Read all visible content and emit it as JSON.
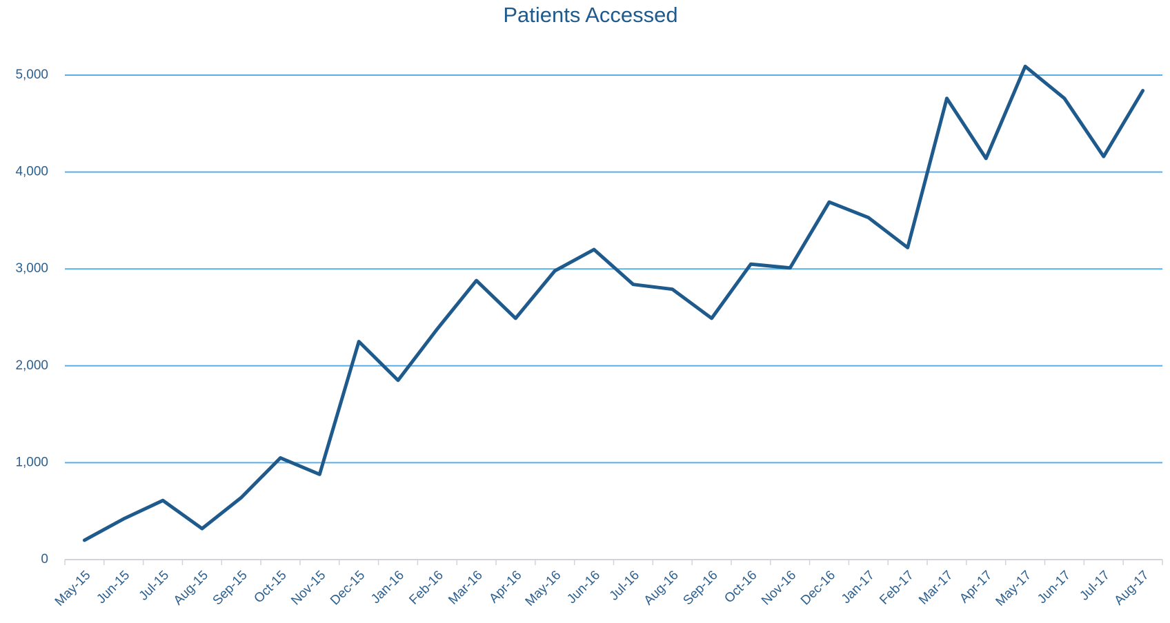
{
  "chart_data": {
    "type": "line",
    "title": "Patients Accessed",
    "categories": [
      "May-15",
      "Jun-15",
      "Jul-15",
      "Aug-15",
      "Sep-15",
      "Oct-15",
      "Nov-15",
      "Dec-15",
      "Jan-16",
      "Feb-16",
      "Mar-16",
      "Apr-16",
      "May-16",
      "Jun-16",
      "Jul-16",
      "Aug-16",
      "Sep-16",
      "Oct-16",
      "Nov-16",
      "Dec-16",
      "Jan-17",
      "Feb-17",
      "Mar-17",
      "Apr-17",
      "May-17",
      "Jun-17",
      "Jul-17",
      "Aug-17"
    ],
    "values": [
      200,
      420,
      610,
      320,
      640,
      1050,
      880,
      2250,
      1850,
      2380,
      2880,
      2490,
      2980,
      3200,
      2840,
      2790,
      2490,
      3050,
      3010,
      3690,
      3530,
      3220,
      4760,
      4140,
      5090,
      4760,
      4160,
      4840
    ],
    "color": "#1f5a8c",
    "ylim": [
      0,
      5000
    ],
    "yticks": [
      0,
      {
        "value": 1000,
        "label": "1,000"
      },
      {
        "value": 2000,
        "label": "2,000"
      },
      {
        "value": 3000,
        "label": "3,000"
      },
      {
        "value": 4000,
        "label": "4,000"
      },
      {
        "value": 5000,
        "label": "5,000"
      }
    ],
    "grid": true
  }
}
